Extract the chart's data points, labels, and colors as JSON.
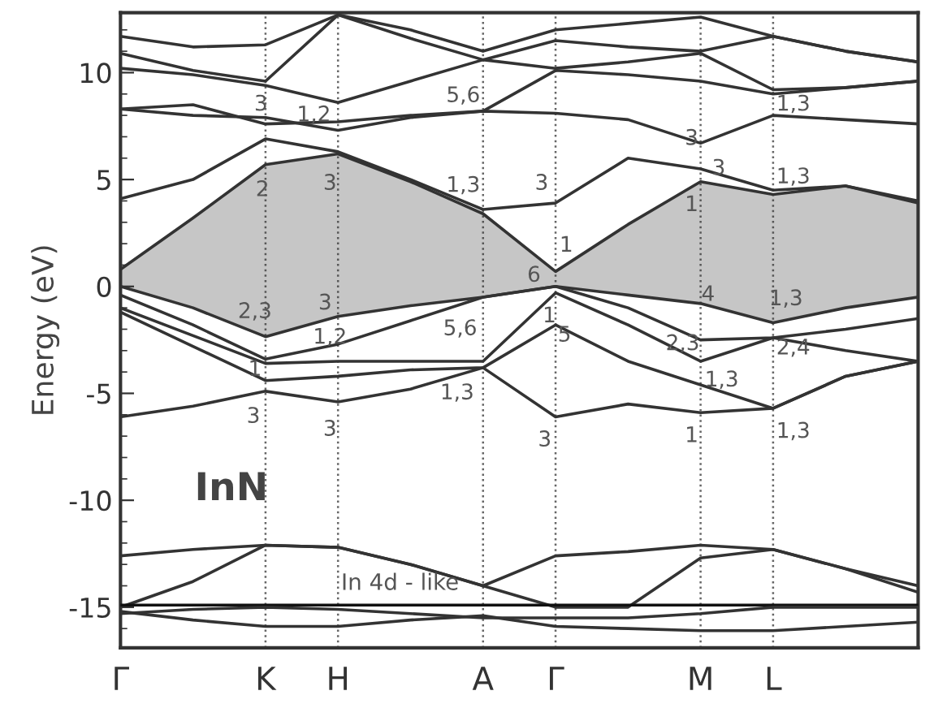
{
  "chart_data": {
    "type": "line",
    "ylabel": "Energy (eV)",
    "categories": [
      "Γ",
      null,
      "K",
      "H",
      null,
      "A",
      "Γ",
      null,
      "M",
      "L",
      null,
      null
    ],
    "ylim": [
      -16.9,
      12.8
    ],
    "yticks": [
      -15,
      -10,
      -5,
      0,
      5,
      10
    ],
    "grid": "x",
    "marker": "none",
    "line_style": "solid",
    "series": [
      {
        "color": "#333333",
        "values": [
          0.8,
          3.2,
          5.7,
          6.2,
          4.9,
          3.4,
          0.7,
          2.9,
          4.9,
          4.3,
          4.7,
          3.9
        ],
        "lower": [
          0,
          -1.0,
          -2.35,
          -1.4,
          -0.9,
          -0.5,
          0,
          -0.4,
          -0.8,
          -1.7,
          -1.0,
          -0.5
        ],
        "upper": [
          0.8,
          3.2,
          5.7,
          6.2,
          4.9,
          3.4,
          0.7,
          2.9,
          4.9,
          4.3,
          4.7,
          3.9
        ]
      },
      {
        "color": "#333333",
        "values": [
          0,
          -1.0,
          -2.35,
          -1.4,
          -0.9,
          -0.5,
          0,
          -0.4,
          -0.8,
          -1.7,
          -1.0,
          -0.5
        ]
      },
      {
        "color": "#333333",
        "values": [
          4.1,
          5.0,
          6.9,
          6.3,
          5.0,
          3.6,
          3.9,
          6.0,
          5.5,
          4.5,
          4.7,
          4.0
        ]
      },
      {
        "color": "#333333",
        "values": [
          8.3,
          8.0,
          7.9,
          7.3,
          7.9,
          8.2,
          8.1,
          7.8,
          6.7,
          8.0,
          7.8,
          7.6
        ]
      },
      {
        "color": "#333333",
        "values": [
          8.3,
          8.5,
          7.6,
          7.7,
          8.0,
          8.2,
          10.1,
          9.9,
          9.6,
          9.0,
          9.3,
          9.6
        ]
      },
      {
        "color": "#333333",
        "values": [
          10.2,
          9.9,
          9.4,
          8.6,
          9.6,
          10.6,
          11.5,
          11.2,
          11.0,
          11.7,
          11.0,
          10.5
        ]
      },
      {
        "color": "#333333",
        "values": [
          10.9,
          10.1,
          9.6,
          12.7,
          11.6,
          10.6,
          10.2,
          10.5,
          10.9,
          9.2,
          9.3,
          9.6
        ]
      },
      {
        "color": "#333333",
        "values": [
          11.7,
          11.2,
          11.3,
          12.7,
          12.0,
          11.0,
          12.0,
          12.3,
          12.6,
          11.7,
          11.0,
          10.5
        ]
      },
      {
        "color": "#333333",
        "values": [
          -0.4,
          -1.8,
          -3.4,
          -2.7,
          -1.6,
          -0.5,
          0,
          -1.0,
          -2.5,
          -2.4,
          -2.0,
          -1.5
        ]
      },
      {
        "color": "#333333",
        "values": [
          -1.0,
          -2.3,
          -3.6,
          -3.5,
          -3.5,
          -3.5,
          -0.3,
          -1.8,
          -3.5,
          -2.4,
          -3.0,
          -3.5
        ]
      },
      {
        "color": "#333333",
        "values": [
          -1.2,
          -2.8,
          -4.4,
          -4.2,
          -3.9,
          -3.8,
          -1.8,
          -3.5,
          -4.6,
          -5.7,
          -4.2,
          -3.5
        ]
      },
      {
        "color": "#333333",
        "values": [
          -6.1,
          -5.6,
          -4.9,
          -5.4,
          -4.8,
          -3.8,
          -6.1,
          -5.5,
          -5.9,
          -5.7,
          -4.2,
          -3.5
        ]
      },
      {
        "color": "#333333",
        "values": [
          -12.6,
          -12.3,
          -12.1,
          -12.2,
          -13.0,
          -14.0,
          -12.6,
          -12.4,
          -12.1,
          -12.3,
          -13.2,
          -14.0
        ]
      },
      {
        "color": "#333333",
        "values": [
          -15.0,
          -13.8,
          -12.1,
          -12.2,
          -13.0,
          -14.0,
          -15.0,
          -15.0,
          -12.7,
          -12.3,
          -13.2,
          -14.3
        ]
      },
      {
        "color": "#111111",
        "values": [
          -14.9,
          -14.9,
          -14.9,
          -14.9,
          -14.9,
          -14.9,
          -14.9,
          -14.9,
          -14.9,
          -14.9,
          -14.9,
          -14.9
        ]
      },
      {
        "color": "#333333",
        "values": [
          -15.2,
          -15.6,
          -15.9,
          -15.9,
          -15.6,
          -15.4,
          -15.9,
          -16.0,
          -16.1,
          -16.1,
          -15.9,
          -15.7
        ]
      },
      {
        "color": "#333333",
        "values": [
          -15.3,
          -15.1,
          -15.0,
          -15.1,
          -15.3,
          -15.5,
          -15.5,
          -15.5,
          -15.3,
          -15.0,
          -15.0,
          -15.0
        ]
      }
    ],
    "annotations": [
      "InN",
      "In 4d - like",
      "3",
      "1,2",
      "5,6",
      "2",
      "3",
      "1,3",
      "3",
      "3",
      "3",
      "1,3",
      "1,3",
      "1",
      "1",
      "6",
      "4",
      "1,3",
      "2,3",
      "3",
      "1,2",
      "5,6",
      "1",
      "3",
      "3",
      "1,3",
      "1",
      "5",
      "2,3",
      "2,4",
      "1,3",
      "3",
      "1",
      "1,3"
    ]
  }
}
